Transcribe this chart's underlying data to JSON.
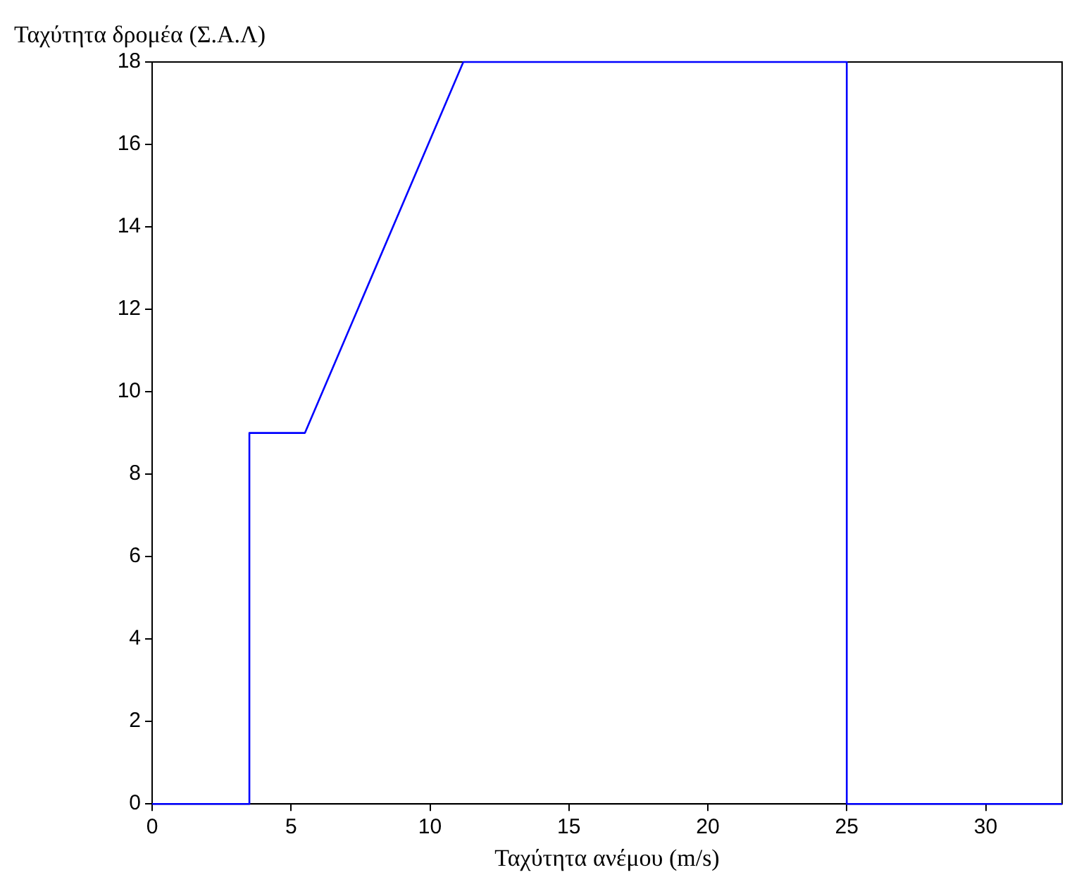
{
  "chart_data": {
    "type": "line",
    "xlabel": "Ταχύτητα ανέμου (m/s)",
    "ylabel": "Ταχύτητα δρομέα (Σ.Α.Λ)",
    "x": [
      0,
      3.5,
      3.5,
      5.5,
      11.2,
      25,
      25,
      32.75
    ],
    "series": [
      {
        "color": "#0000ff",
        "values": [
          0,
          0,
          9,
          9,
          18,
          18,
          0,
          0
        ]
      }
    ],
    "xlim": [
      0,
      32.75
    ],
    "xticks": [
      0,
      5,
      10,
      15,
      20,
      25,
      30
    ],
    "ylim": [
      0,
      18
    ],
    "yticks": [
      0,
      2,
      4,
      6,
      8,
      10,
      12,
      14,
      16,
      18
    ],
    "marker": "none",
    "line_style": "solid",
    "legend": false
  }
}
